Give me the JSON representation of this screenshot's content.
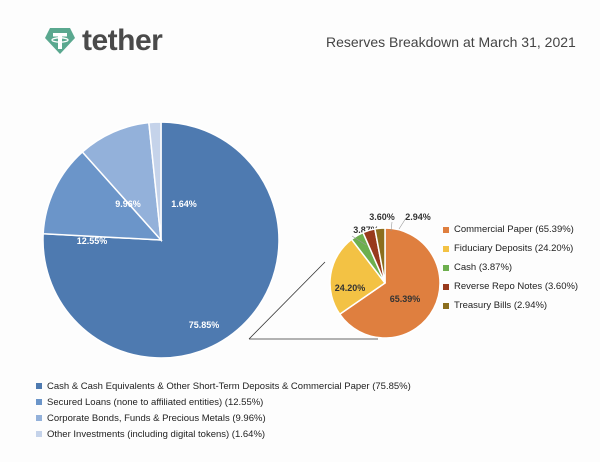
{
  "brand": {
    "name": "tether",
    "logo_color": "#5aa88f"
  },
  "chart_data": [
    {
      "type": "pie",
      "title": "Reserves Breakdown at March 31, 2021",
      "labels": [
        "Cash & Cash Equivalents & Other Short-Term Deposits & Commercial Paper (75.85%)",
        "Secured Loans (none to affiliated entities) (12.55%)",
        "Corporate Bonds, Funds & Precious Metals (9.96%)",
        "Other Investments (including digital tokens) (1.64%)"
      ],
      "values": [
        75.85,
        12.55,
        9.96,
        1.64
      ],
      "data_labels": [
        "75.85%",
        "12.55%",
        "9.96%",
        "1.64%"
      ],
      "colors": [
        "#4e7ab0",
        "#6b95c9",
        "#93b1da",
        "#c5d3ea"
      ],
      "start": "12 o'clock",
      "direction": "clockwise",
      "legend_placement": "bottom"
    },
    {
      "type": "pie",
      "breakdown_of": "Cash & Cash Equivalents & Other Short-Term Deposits & Commercial Paper",
      "labels": [
        "Commercial Paper (65.39%)",
        "Fiduciary Deposits (24.20%)",
        "Cash (3.87%)",
        "Reverse Repo Notes (3.60%)",
        "Treasury Bills (2.94%)"
      ],
      "values": [
        65.39,
        24.2,
        3.87,
        3.6,
        2.94
      ],
      "data_labels": [
        "65.39%",
        "24.20%",
        "3.87%",
        "3.60%",
        "2.94%"
      ],
      "colors": [
        "#df7f3f",
        "#f3c244",
        "#6daf4e",
        "#983a1c",
        "#8b6e1e"
      ],
      "start": "12 o'clock",
      "direction": "clockwise",
      "legend_placement": "right"
    }
  ]
}
